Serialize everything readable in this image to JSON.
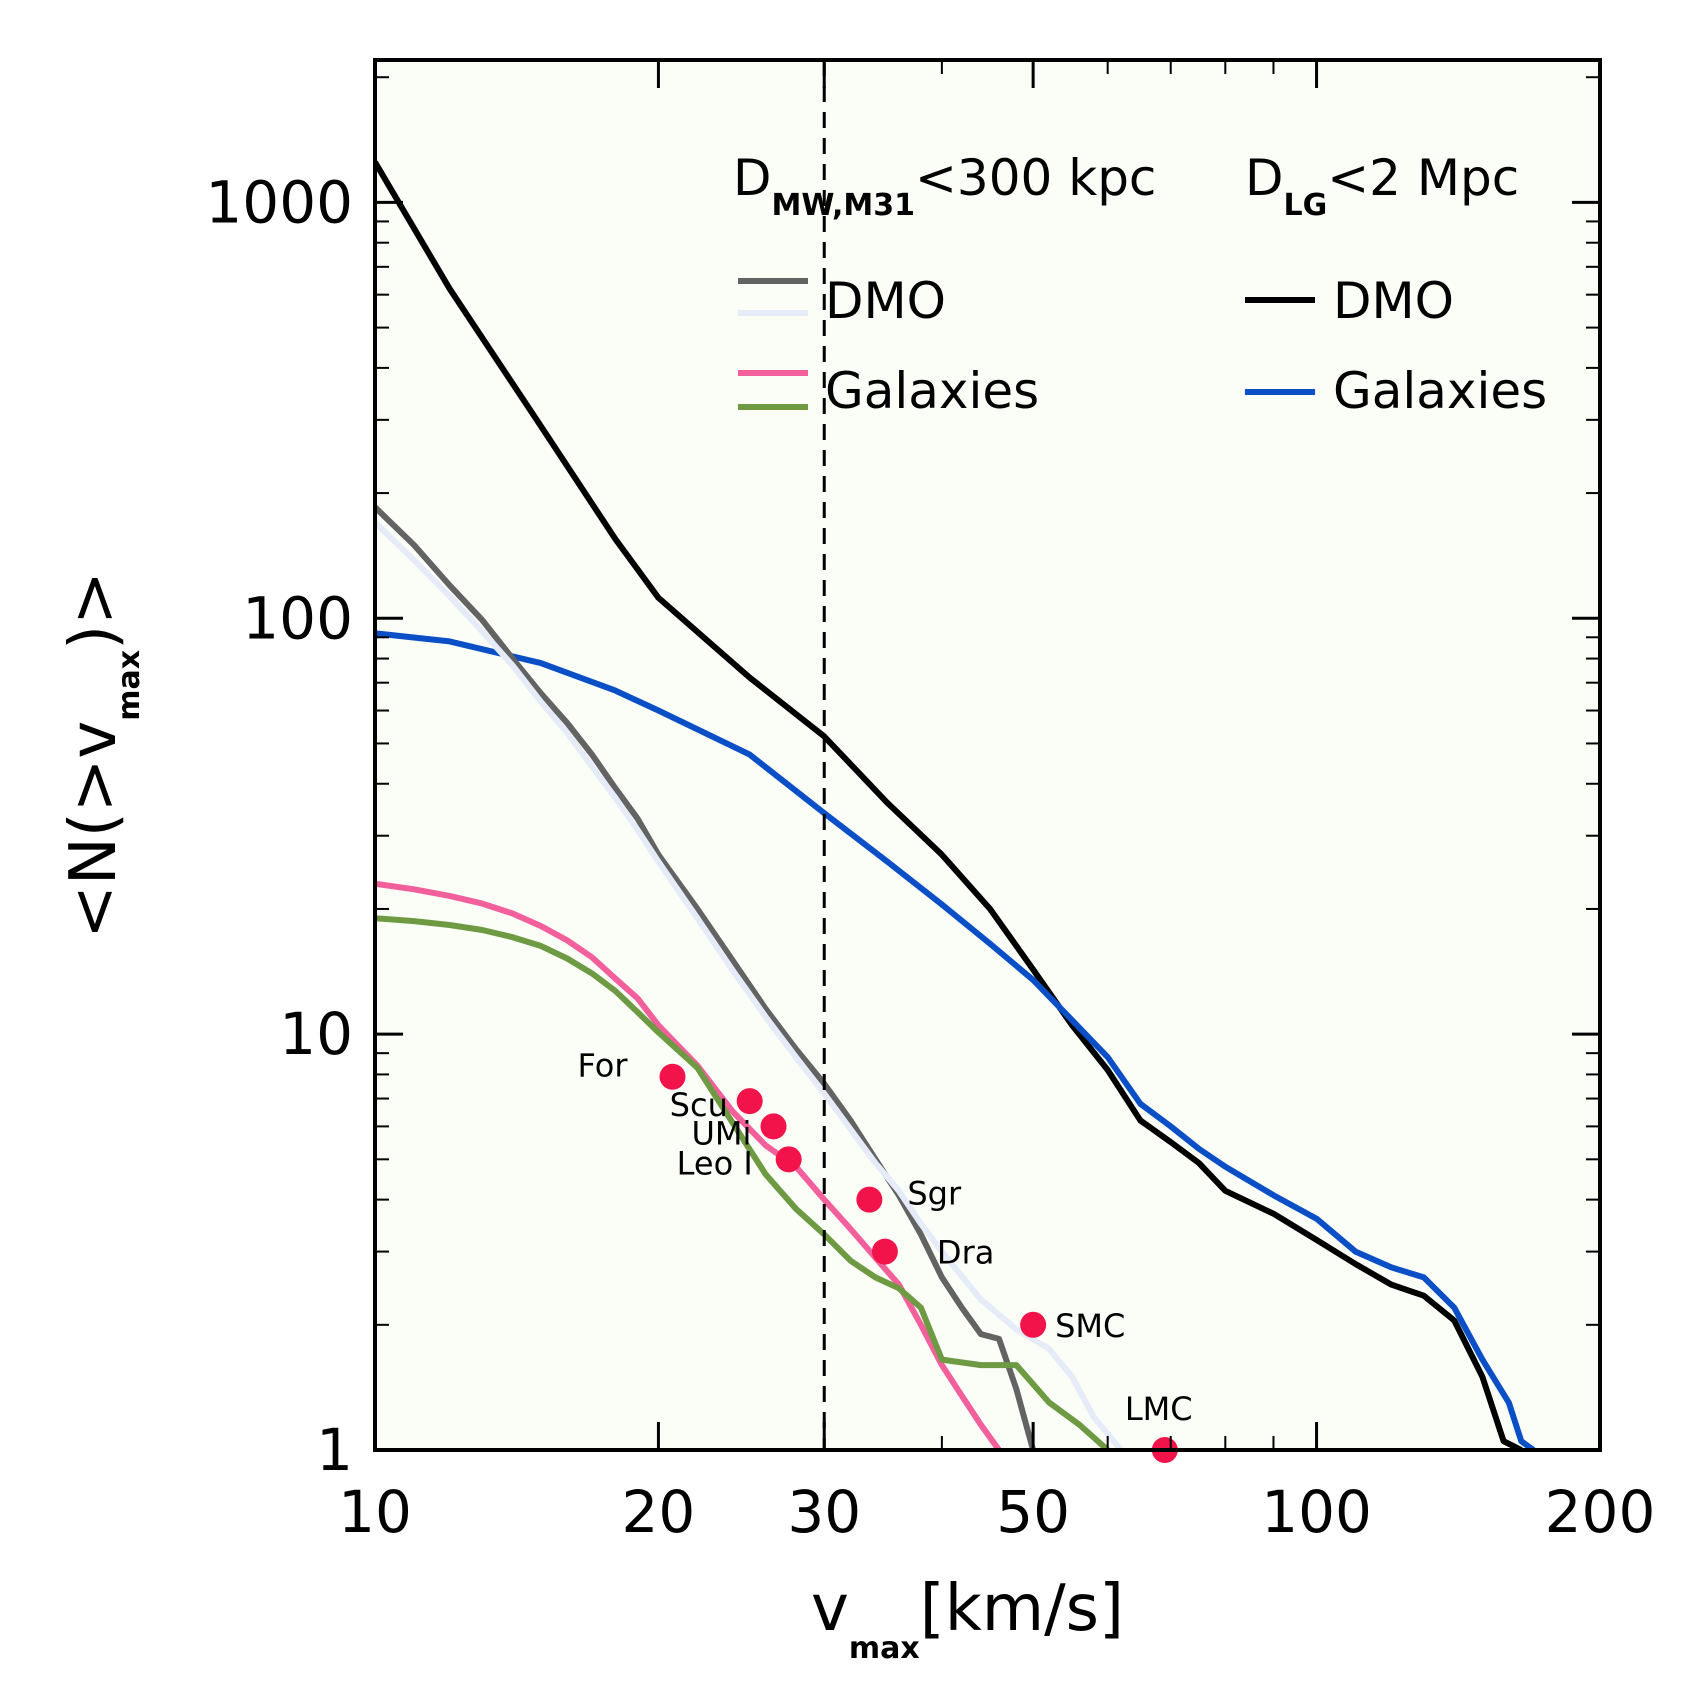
{
  "chart_data": {
    "type": "line",
    "xlabel": "v",
    "xlabel_sub": "max",
    "xlabel_unit": "[km/s]",
    "ylabel": "<N(>v",
    "ylabel_sub": "max",
    "ylabel_end": ")>",
    "xscale": "log",
    "yscale": "log",
    "xlim": [
      10,
      200
    ],
    "ylim": [
      1,
      2200
    ],
    "x_ticks": [
      10,
      20,
      30,
      50,
      100,
      200
    ],
    "x_tick_labels": [
      "10",
      "20",
      "30",
      "50",
      "100",
      "200"
    ],
    "y_ticks": [
      1,
      10,
      100,
      1000
    ],
    "y_tick_labels": [
      "1",
      "10",
      "100",
      "1000"
    ],
    "vline": 30,
    "colors": {
      "background": "#fbfdf7",
      "mw_dmo_a": "#636363",
      "mw_dmo_b": "#e6ebf8",
      "mw_gal_a": "#f2609c",
      "mw_gal_b": "#6e9a43",
      "lg_dmo": "#000000",
      "lg_gal": "#0b4fc7",
      "points": "#f2134a"
    },
    "legend": {
      "left_head": "D",
      "left_head_sub": "MW,M31",
      "left_head_tail": "<300 kpc",
      "right_head": "D",
      "right_head_sub": "LG",
      "right_head_tail": "<2 Mpc",
      "left_items": [
        "DMO",
        "Galaxies"
      ],
      "right_items": [
        "DMO",
        "Galaxies"
      ]
    },
    "series": [
      {
        "key": "lg_dmo",
        "color": "#000000",
        "x": [
          10,
          12,
          15,
          18,
          20,
          25,
          30,
          35,
          40,
          45,
          50,
          55,
          60,
          65,
          70,
          75,
          80,
          90,
          100,
          110,
          120,
          130,
          140,
          150,
          158,
          165
        ],
        "y": [
          1250,
          620,
          290,
          155,
          112,
          72,
          52,
          36,
          27,
          20,
          14.3,
          10.5,
          8.2,
          6.2,
          5.5,
          4.9,
          4.2,
          3.7,
          3.2,
          2.8,
          2.5,
          2.35,
          2.05,
          1.5,
          1.05,
          1.0
        ]
      },
      {
        "key": "lg_gal",
        "color": "#0b4fc7",
        "x": [
          10,
          12,
          15,
          18,
          20,
          25,
          30,
          35,
          40,
          45,
          50,
          55,
          60,
          65,
          70,
          75,
          80,
          90,
          100,
          110,
          120,
          130,
          140,
          150,
          160,
          165,
          170
        ],
        "y": [
          92,
          88,
          78,
          67,
          60,
          47,
          34,
          26,
          20.5,
          16.5,
          13.5,
          10.8,
          8.8,
          6.8,
          6.0,
          5.3,
          4.8,
          4.1,
          3.6,
          3.0,
          2.75,
          2.6,
          2.2,
          1.65,
          1.3,
          1.05,
          1.0
        ]
      },
      {
        "key": "mw_dmo_a",
        "color": "#636363",
        "x": [
          10,
          11,
          12,
          13,
          14,
          15,
          16,
          17,
          18,
          19,
          20,
          22,
          24,
          26,
          28,
          30,
          32,
          34,
          36,
          38,
          40,
          42,
          44,
          46,
          48,
          50
        ],
        "y": [
          185,
          150,
          120,
          99,
          80,
          66,
          56,
          47,
          39,
          33,
          27,
          20,
          15,
          11.5,
          9.2,
          7.6,
          6.2,
          5.0,
          4.1,
          3.3,
          2.6,
          2.2,
          1.9,
          1.85,
          1.4,
          1.0
        ]
      },
      {
        "key": "mw_dmo_b",
        "color": "#e6ebf8",
        "x": [
          10,
          11,
          12,
          13,
          14,
          15,
          16,
          17,
          18,
          19,
          20,
          22,
          24,
          26,
          28,
          30,
          32,
          34,
          36,
          38,
          40,
          44,
          48,
          52,
          55,
          58,
          62
        ],
        "y": [
          170,
          138,
          113,
          93,
          77,
          63,
          53,
          44,
          37,
          31,
          26,
          19,
          14.2,
          11,
          8.8,
          7.2,
          5.9,
          4.9,
          4.2,
          3.5,
          3.0,
          2.3,
          1.95,
          1.75,
          1.5,
          1.2,
          1.0
        ]
      },
      {
        "key": "mw_gal_a",
        "color": "#f2609c",
        "x": [
          10,
          11,
          12,
          13,
          14,
          15,
          16,
          17,
          18,
          19,
          20,
          22,
          24,
          26,
          28,
          30,
          32,
          34,
          36,
          38,
          40,
          42,
          44,
          46
        ],
        "y": [
          23,
          22.3,
          21.5,
          20.6,
          19.5,
          18.2,
          16.8,
          15.3,
          13.6,
          12.2,
          10.5,
          8.4,
          6.5,
          5.4,
          4.8,
          4.0,
          3.4,
          2.9,
          2.5,
          2.0,
          1.6,
          1.35,
          1.15,
          1.0
        ]
      },
      {
        "key": "mw_gal_b",
        "color": "#6e9a43",
        "x": [
          10,
          11,
          12,
          13,
          14,
          15,
          16,
          17,
          18,
          19,
          20,
          22,
          24,
          26,
          28,
          30,
          32,
          34,
          36,
          38,
          40,
          44,
          48,
          52,
          56,
          60
        ],
        "y": [
          19,
          18.7,
          18.3,
          17.8,
          17.1,
          16.3,
          15.2,
          14.0,
          12.7,
          11.3,
          10.1,
          8.3,
          6.1,
          4.6,
          3.8,
          3.3,
          2.85,
          2.6,
          2.45,
          2.2,
          1.65,
          1.6,
          1.6,
          1.3,
          1.15,
          1.0
        ]
      }
    ],
    "points": [
      {
        "name": "For",
        "x": 20.7,
        "y": 7.9
      },
      {
        "name": "Scu",
        "x": 25.0,
        "y": 6.9
      },
      {
        "name": "UMi",
        "x": 26.5,
        "y": 6.0
      },
      {
        "name": "Leo I",
        "x": 27.5,
        "y": 5.0
      },
      {
        "name": "Sgr",
        "x": 33.5,
        "y": 4.0
      },
      {
        "name": "Dra",
        "x": 34.8,
        "y": 3.0
      },
      {
        "name": "SMC",
        "x": 50.0,
        "y": 2.0
      },
      {
        "name": "LMC",
        "x": 69.0,
        "y": 0.98
      }
    ]
  }
}
